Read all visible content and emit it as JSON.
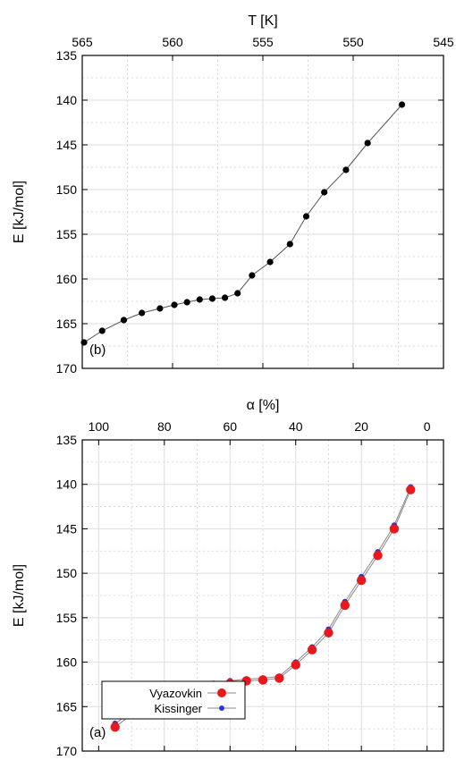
{
  "chart_data": [
    {
      "type": "scatter",
      "panel_label": "(b)",
      "xlabel": "T [K]",
      "ylabel": "E [kJ/mol]",
      "xlim": [
        545,
        565
      ],
      "ylim": [
        135,
        170
      ],
      "x_reversed": true,
      "y_reversed": true,
      "xticks": [
        545,
        550,
        555,
        560,
        565
      ],
      "xtick_labels": [
        "545",
        "550",
        "555",
        "560",
        "565"
      ],
      "yticks": [
        135,
        140,
        145,
        150,
        155,
        160,
        165,
        170
      ],
      "ytick_labels": [
        "135",
        "140",
        "145",
        "150",
        "155",
        "160",
        "165",
        "170"
      ],
      "grid": true,
      "series": [
        {
          "name": "",
          "color": "#000000",
          "x": [
            564.9,
            563.9,
            562.7,
            561.7,
            560.7,
            559.9,
            559.2,
            558.5,
            557.8,
            557.1,
            556.4,
            555.6,
            554.6,
            553.5,
            552.6,
            551.6,
            550.4,
            549.2,
            547.3
          ],
          "y": [
            167.1,
            165.8,
            164.6,
            163.8,
            163.3,
            162.9,
            162.6,
            162.3,
            162.2,
            162.1,
            161.6,
            159.6,
            158.1,
            156.1,
            153.0,
            150.3,
            147.8,
            144.8,
            140.5
          ]
        }
      ]
    },
    {
      "type": "scatter",
      "panel_label": "(a)",
      "xlabel": "α [%]",
      "ylabel": "E [kJ/mol]",
      "xlim": [
        -5,
        105
      ],
      "ylim": [
        135,
        170
      ],
      "x_reversed": true,
      "y_reversed": true,
      "xticks": [
        0,
        20,
        40,
        60,
        80,
        100
      ],
      "xtick_labels": [
        "0",
        "20",
        "40",
        "60",
        "80",
        "100"
      ],
      "yticks": [
        135,
        140,
        145,
        150,
        155,
        160,
        165,
        170
      ],
      "ytick_labels": [
        "135",
        "140",
        "145",
        "150",
        "155",
        "160",
        "165",
        "170"
      ],
      "grid": true,
      "legend_position": "bottom-right",
      "series": [
        {
          "name": "Kissinger",
          "color": "#2b34d8",
          "marker": "small-dot",
          "x": [
            95,
            90,
            85,
            80,
            75,
            70,
            65,
            60,
            55,
            50,
            45,
            40,
            35,
            30,
            25,
            20,
            15,
            10,
            5
          ],
          "y": [
            166.9,
            165.6,
            164.3,
            163.6,
            163.1,
            162.7,
            162.4,
            162.1,
            161.9,
            161.8,
            161.6,
            160.0,
            158.3,
            156.3,
            153.2,
            150.4,
            147.6,
            144.6,
            140.3
          ]
        },
        {
          "name": "Vyazovkin",
          "color": "#e8181c",
          "marker": "large-dot",
          "x": [
            95,
            90,
            85,
            80,
            75,
            70,
            65,
            60,
            55,
            50,
            45,
            40,
            35,
            30,
            25,
            20,
            15,
            10,
            5
          ],
          "y": [
            167.3,
            165.9,
            164.6,
            163.8,
            163.3,
            163.0,
            162.6,
            162.4,
            162.1,
            162.0,
            161.8,
            160.3,
            158.6,
            156.7,
            153.6,
            150.8,
            148.0,
            145.0,
            140.6
          ]
        }
      ]
    }
  ]
}
